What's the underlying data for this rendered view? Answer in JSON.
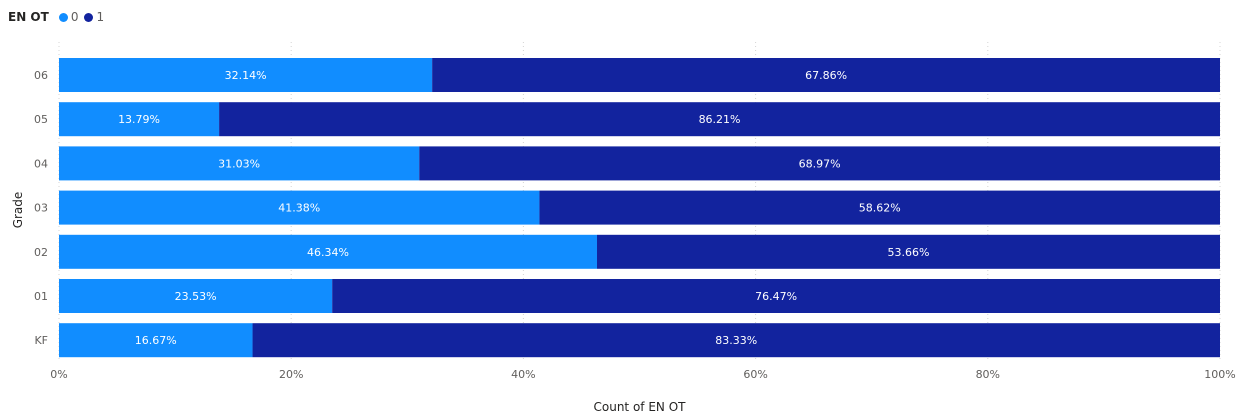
{
  "legend": {
    "title": "EN OT",
    "items": [
      {
        "label": "0",
        "color": "#118DFF"
      },
      {
        "label": "1",
        "color": "#12239E"
      }
    ]
  },
  "chart_data": {
    "type": "bar",
    "orientation": "horizontal",
    "stacked": "100%",
    "categories": [
      "06",
      "05",
      "04",
      "03",
      "02",
      "01",
      "KF"
    ],
    "series": [
      {
        "name": "0",
        "color": "#118DFF",
        "values": [
          32.14,
          13.79,
          31.03,
          41.38,
          46.34,
          23.53,
          16.67
        ],
        "labels": [
          "32.14%",
          "13.79%",
          "31.03%",
          "41.38%",
          "46.34%",
          "23.53%",
          "16.67%"
        ]
      },
      {
        "name": "1",
        "color": "#12239E",
        "values": [
          67.86,
          86.21,
          68.97,
          58.62,
          53.66,
          76.47,
          83.33
        ],
        "labels": [
          "67.86%",
          "86.21%",
          "68.97%",
          "58.62%",
          "53.66%",
          "76.47%",
          "83.33%"
        ]
      }
    ],
    "xlabel": "Count of EN OT",
    "ylabel": "Grade",
    "xlim": [
      0,
      100
    ],
    "xticks": [
      0,
      20,
      40,
      60,
      80,
      100
    ],
    "xtick_labels": [
      "0%",
      "20%",
      "40%",
      "60%",
      "80%",
      "100%"
    ],
    "grid": "vertical dotted",
    "legend_position": "top-left"
  }
}
